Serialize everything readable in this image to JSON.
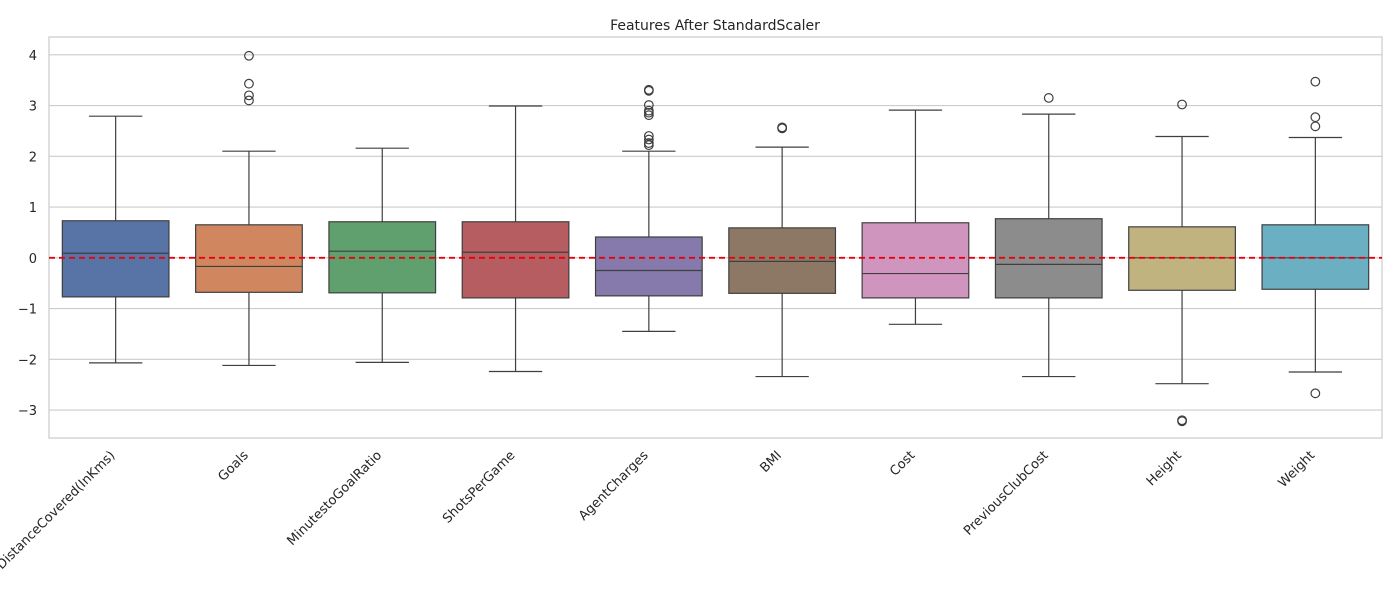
{
  "chart_data": {
    "type": "boxplot",
    "title": "Features After StandardScaler",
    "xlabel": "",
    "ylabel": "",
    "ylim": [
      -3.55,
      4.35
    ],
    "yticks": [
      4,
      3,
      2,
      1,
      0,
      -1,
      -2,
      -3
    ],
    "ytick_labels": [
      "4",
      "3",
      "2",
      "1",
      "0",
      "−1",
      "−2",
      "−3"
    ],
    "grid": true,
    "reference_line": {
      "y": 0,
      "color": "#e8000b",
      "style": "dashed"
    },
    "categories": [
      "DistanceCovered(InKms)",
      "Goals",
      "MinutestoGoalRatio",
      "ShotsPerGame",
      "AgentCharges",
      "BMI",
      "Cost",
      "PreviousClubCost",
      "Height",
      "Weight"
    ],
    "boxes": [
      {
        "name": "DistanceCovered(InKms)",
        "whisker_low": -2.07,
        "q1": -0.77,
        "median": 0.09,
        "q3": 0.73,
        "whisker_high": 2.79,
        "outliers": [],
        "color": "#5874a6"
      },
      {
        "name": "Goals",
        "whisker_low": -2.12,
        "q1": -0.68,
        "median": -0.17,
        "q3": 0.65,
        "whisker_high": 2.1,
        "outliers": [
          3.1,
          3.2,
          3.43,
          3.98
        ],
        "color": "#d0875f"
      },
      {
        "name": "MinutestoGoalRatio",
        "whisker_low": -2.06,
        "q1": -0.69,
        "median": 0.13,
        "q3": 0.71,
        "whisker_high": 2.16,
        "outliers": [],
        "color": "#5fa06e"
      },
      {
        "name": "ShotsPerGame",
        "whisker_low": -2.24,
        "q1": -0.79,
        "median": 0.11,
        "q3": 0.71,
        "whisker_high": 2.99,
        "outliers": [],
        "color": "#b55d60"
      },
      {
        "name": "AgentCharges",
        "whisker_low": -1.45,
        "q1": -0.75,
        "median": -0.25,
        "q3": 0.41,
        "whisker_high": 2.1,
        "outliers": [
          2.22,
          2.26,
          2.33,
          2.4,
          2.81,
          2.86,
          2.9,
          3.01,
          3.29,
          3.31
        ],
        "color": "#857aab"
      },
      {
        "name": "BMI",
        "whisker_low": -2.34,
        "q1": -0.7,
        "median": -0.07,
        "q3": 0.59,
        "whisker_high": 2.18,
        "outliers": [
          2.55,
          2.56,
          2.57
        ],
        "color": "#8d7866"
      },
      {
        "name": "Cost",
        "whisker_low": -1.31,
        "q1": -0.79,
        "median": -0.31,
        "q3": 0.69,
        "whisker_high": 2.91,
        "outliers": [],
        "color": "#d095bf"
      },
      {
        "name": "PreviousClubCost",
        "whisker_low": -2.34,
        "q1": -0.79,
        "median": -0.13,
        "q3": 0.77,
        "whisker_high": 2.83,
        "outliers": [
          3.15
        ],
        "color": "#8c8c8c"
      },
      {
        "name": "Height",
        "whisker_low": -2.48,
        "q1": -0.64,
        "median": 0.0,
        "q3": 0.61,
        "whisker_high": 2.39,
        "outliers": [
          3.02,
          -3.2,
          -3.22
        ],
        "color": "#c1b37f"
      },
      {
        "name": "Weight",
        "whisker_low": -2.25,
        "q1": -0.62,
        "median": 0.0,
        "q3": 0.65,
        "whisker_high": 2.37,
        "outliers": [
          2.59,
          2.77,
          3.47,
          -2.67
        ],
        "color": "#6bafc2"
      }
    ]
  }
}
